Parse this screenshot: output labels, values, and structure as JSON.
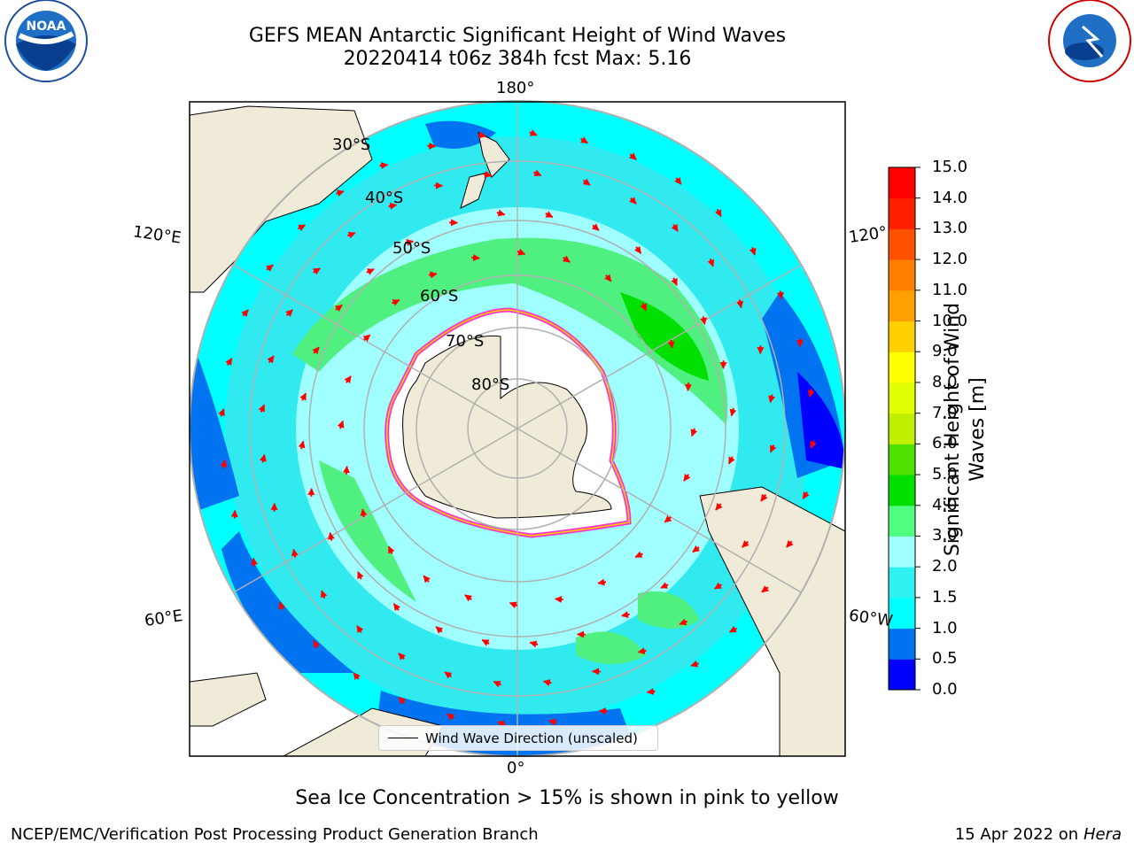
{
  "title": {
    "line1": "GEFS MEAN Antarctic Significant Height of Wind Waves",
    "line2": "20220414 t06z 384h fcst   Max: 5.16"
  },
  "map": {
    "longitude_labels": {
      "top": "180°",
      "bottom": "0°",
      "left_upper": "120°E",
      "left_lower": "60°E",
      "right_upper": "120°",
      "right_lower": "60°W"
    },
    "latitude_labels": [
      "30°S",
      "40°S",
      "50°S",
      "60°S",
      "70°S",
      "80°S"
    ],
    "colors": {
      "land": "#efebd8",
      "ice_shelf": "#ffffff",
      "sea_ice_edge": "#ff33cc",
      "arrow": "#ff0000",
      "grid": "#b0b0b0"
    }
  },
  "legend": {
    "label": "Wind Wave Direction (unscaled)"
  },
  "colorbar": {
    "label_line1": "Significant Height of Wind",
    "label_line2": "Waves [m]",
    "ticks": [
      "0.0",
      "0.5",
      "1.0",
      "1.5",
      "2.0",
      "3.0",
      "4.0",
      "5.0",
      "6.0",
      "7.0",
      "8.0",
      "9.0",
      "10.0",
      "11.0",
      "12.0",
      "13.0",
      "14.0",
      "15.0"
    ],
    "colors": [
      "#0000ff",
      "#0073f0",
      "#00ffff",
      "#30f0f0",
      "#a0ffff",
      "#50ff80",
      "#00e000",
      "#50e000",
      "#c0f000",
      "#e0ff00",
      "#ffff00",
      "#ffd000",
      "#ffa000",
      "#ff8000",
      "#ff5000",
      "#ff2000",
      "#ff0000"
    ]
  },
  "caption": "Sea Ice Concentration > 15% is shown in pink to yellow",
  "footer": {
    "left": "NCEP/EMC/Verification Post Processing Product Generation Branch",
    "right_date": "15 Apr 2022 on",
    "right_host": "Hera"
  },
  "logos": {
    "left": "NOAA",
    "right": "NATIONAL WEATHER SERVICE"
  }
}
